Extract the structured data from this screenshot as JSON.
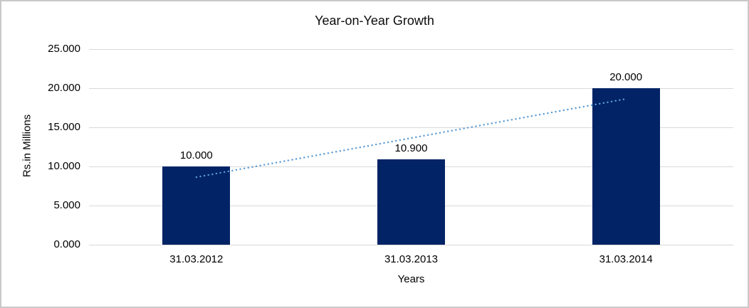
{
  "frame": {
    "border_color": "#c9c9c9",
    "background_color": "#ffffff"
  },
  "chart_data": {
    "type": "bar",
    "title": "Year-on-Year Growth",
    "categories": [
      "31.03.2012",
      "31.03.2013",
      "31.03.2014"
    ],
    "values": [
      10.0,
      10.9,
      20.0
    ],
    "value_labels": [
      "10.000",
      "10.900",
      "20.000"
    ],
    "xlabel": "Years",
    "ylabel": "Rs.in Millions",
    "ylim": [
      0,
      25
    ],
    "ytick_labels": [
      "0.000",
      "5.000",
      "10.000",
      "15.000",
      "20.000",
      "25.000"
    ],
    "grid": true,
    "legend": "none",
    "bar_color": "#022366",
    "gridline_color": "#d9d9d9",
    "text_color": "#000000",
    "trendline": {
      "type": "linear",
      "style": "dotted",
      "color": "#5b9bd5",
      "start_value": 8.63,
      "end_value": 18.63
    }
  }
}
